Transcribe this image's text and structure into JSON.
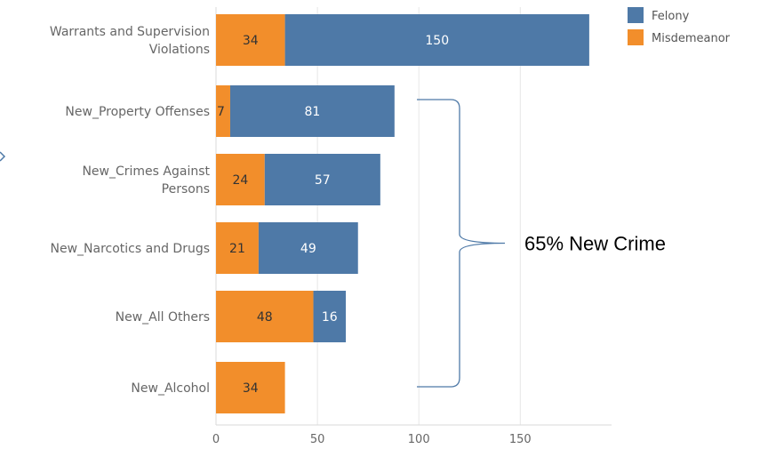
{
  "chart_data": {
    "type": "bar",
    "orientation": "horizontal",
    "stacked": true,
    "categories": [
      "Warrants and Supervision Violations",
      "New_Property Offenses",
      "New_Crimes Against Persons",
      "New_Narcotics and Drugs",
      "New_All Others",
      "New_Alcohol"
    ],
    "category_lines": [
      [
        "Warrants and Supervision",
        "Violations"
      ],
      [
        "New_Property Offenses"
      ],
      [
        "New_Crimes Against",
        "Persons"
      ],
      [
        "New_Narcotics and Drugs"
      ],
      [
        "New_All Others"
      ],
      [
        "New_Alcohol"
      ]
    ],
    "series": [
      {
        "name": "Misdemeanor",
        "color": "#f28e2b",
        "values": [
          34,
          7,
          24,
          21,
          48,
          34
        ]
      },
      {
        "name": "Felony",
        "color": "#4e79a7",
        "values": [
          150,
          81,
          57,
          49,
          16,
          0
        ]
      }
    ],
    "xticks": [
      "0",
      "50",
      "100",
      "150"
    ],
    "xlim": [
      0,
      195
    ],
    "grid": true,
    "legend": {
      "position": "top-right",
      "items": [
        {
          "label": "Felony",
          "color": "#4e79a7"
        },
        {
          "label": "Misdemeanor",
          "color": "#f28e2b"
        }
      ]
    },
    "annotation": {
      "text": "65% New Crime",
      "brace_from_category": 1,
      "brace_to_category": 5
    }
  }
}
